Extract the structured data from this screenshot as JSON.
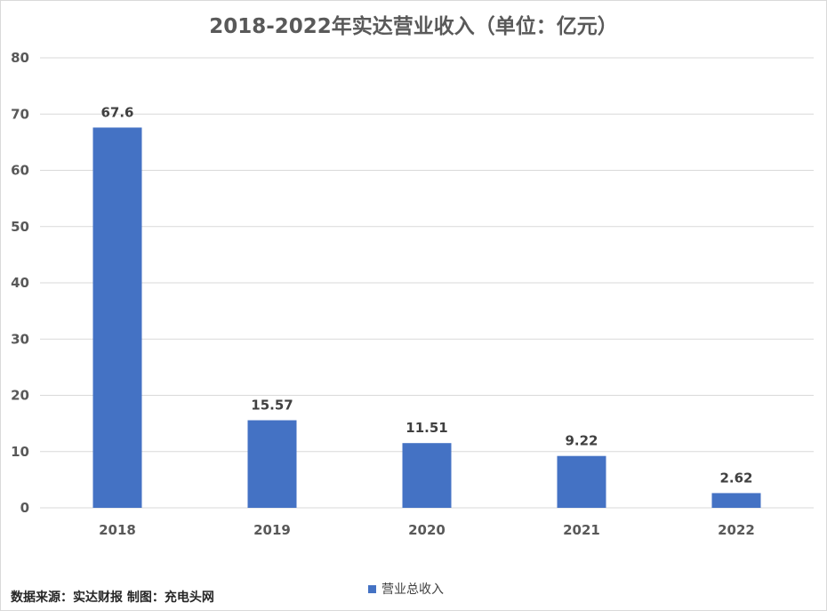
{
  "chart_data": {
    "type": "bar",
    "title": "2018-2022年实达营业收入（单位：亿元）",
    "categories": [
      "2018",
      "2019",
      "2020",
      "2021",
      "2022"
    ],
    "series": [
      {
        "name": "营业总收入",
        "values": [
          67.6,
          15.57,
          11.51,
          9.22,
          2.62
        ],
        "labels": [
          "67.6",
          "15.57",
          "11.51",
          "9.22",
          "2.62"
        ],
        "color": "#4472c4"
      }
    ],
    "ylim": [
      0,
      80
    ],
    "yticks": [
      "0",
      "10",
      "20",
      "30",
      "40",
      "50",
      "60",
      "70",
      "80"
    ],
    "grid": true,
    "legend": "bottom"
  },
  "footer": {
    "source": "数据来源：实达财报 制图：充电头网"
  }
}
